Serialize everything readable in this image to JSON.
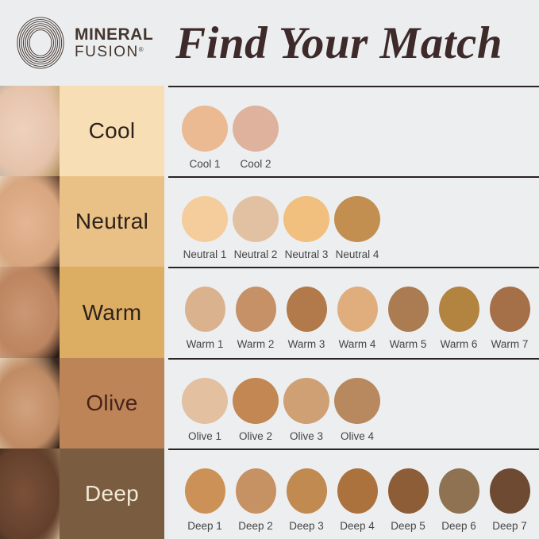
{
  "header": {
    "brand_line1": "MINERAL",
    "brand_line2": "FUSION",
    "brand_mark": "®",
    "title": "Find Your Match"
  },
  "palette": {
    "page_bg": "#ecedef",
    "panel_bg": "#edeef0",
    "separator_color": "#2a2422",
    "title_color": "#3e2a2a",
    "brand_color": "#44362f",
    "swatch_label_color": "#454545"
  },
  "rows": [
    {
      "id": "cool",
      "label": "Cool",
      "label_bg": "#f8deb4",
      "label_color": "#2d221b",
      "swatches": [
        {
          "name": "Cool 1",
          "color": "#ebba92"
        },
        {
          "name": "Cool 2",
          "color": "#deb29c"
        }
      ]
    },
    {
      "id": "neutral",
      "label": "Neutral",
      "label_bg": "#e9c086",
      "label_color": "#2d221b",
      "swatches": [
        {
          "name": "Neutral 1",
          "color": "#f5cd9c"
        },
        {
          "name": "Neutral 2",
          "color": "#e2c1a2"
        },
        {
          "name": "Neutral 3",
          "color": "#f1bf7e"
        },
        {
          "name": "Neutral 4",
          "color": "#c28f51"
        }
      ]
    },
    {
      "id": "warm",
      "label": "Warm",
      "label_bg": "#dcae63",
      "label_color": "#2d221b",
      "swatches": [
        {
          "name": "Warm 1",
          "color": "#dab28e"
        },
        {
          "name": "Warm 2",
          "color": "#c69167"
        },
        {
          "name": "Warm 3",
          "color": "#b27a4b"
        },
        {
          "name": "Warm 4",
          "color": "#e0ad7d"
        },
        {
          "name": "Warm 5",
          "color": "#ab7c51"
        },
        {
          "name": "Warm 6",
          "color": "#b38340"
        },
        {
          "name": "Warm 7",
          "color": "#a56f48"
        }
      ]
    },
    {
      "id": "olive",
      "label": "Olive",
      "label_bg": "#bc8457",
      "label_color": "#4a221a",
      "swatches": [
        {
          "name": "Olive 1",
          "color": "#e2c0a0"
        },
        {
          "name": "Olive 2",
          "color": "#c28752"
        },
        {
          "name": "Olive 3",
          "color": "#cfa074"
        },
        {
          "name": "Olive 4",
          "color": "#b8885e"
        }
      ]
    },
    {
      "id": "deep",
      "label": "Deep",
      "label_bg": "#7a5c41",
      "label_color": "#f2e9d4",
      "swatches": [
        {
          "name": "Deep 1",
          "color": "#cc9156"
        },
        {
          "name": "Deep 2",
          "color": "#c69163"
        },
        {
          "name": "Deep 3",
          "color": "#c08a51"
        },
        {
          "name": "Deep 4",
          "color": "#ab723e"
        },
        {
          "name": "Deep 5",
          "color": "#8c5d37"
        },
        {
          "name": "Deep 6",
          "color": "#8e7251"
        },
        {
          "name": "Deep 7",
          "color": "#6e4a32"
        }
      ]
    }
  ]
}
